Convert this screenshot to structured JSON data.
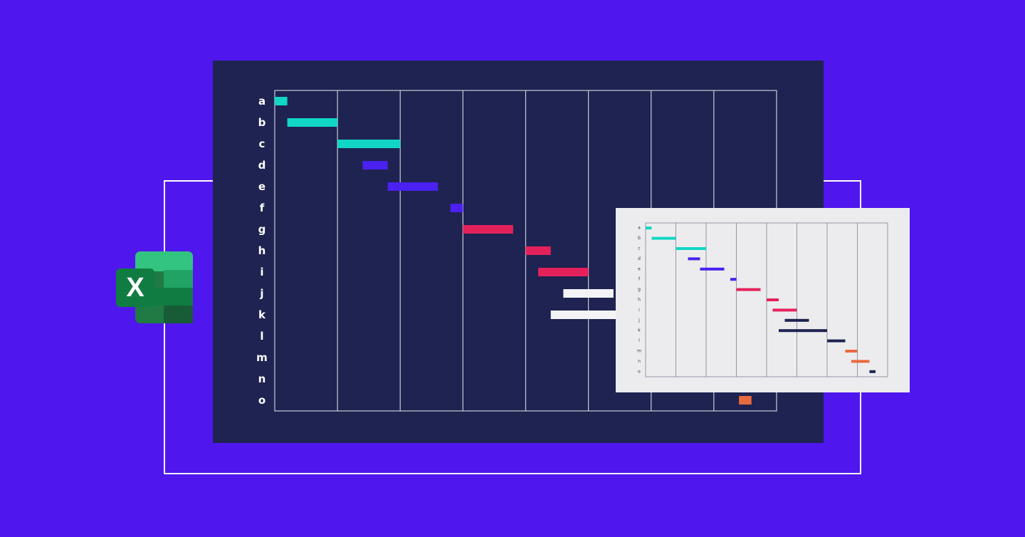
{
  "palette": {
    "background": "#4f17ee",
    "main_panel": "#1e2351",
    "inset_panel": "#ececee",
    "teal": "#11d6c5",
    "blue": "#4a21f0",
    "red": "#e5215b",
    "white": "#f4f4f6",
    "orange": "#e86a3f",
    "navy": "#1e2351"
  },
  "logo": {
    "icon": "excel-logo-icon",
    "letter": "X"
  },
  "chart_data": [
    {
      "type": "gantt",
      "title": "",
      "grid": true,
      "time_columns": 8,
      "rows": [
        {
          "label": "a",
          "start": 0.0,
          "end": 0.2,
          "color": "teal"
        },
        {
          "label": "b",
          "start": 0.2,
          "end": 1.0,
          "color": "teal"
        },
        {
          "label": "c",
          "start": 1.0,
          "end": 2.0,
          "color": "teal"
        },
        {
          "label": "d",
          "start": 1.4,
          "end": 1.8,
          "color": "blue"
        },
        {
          "label": "e",
          "start": 1.8,
          "end": 2.6,
          "color": "blue"
        },
        {
          "label": "f",
          "start": 2.8,
          "end": 3.0,
          "color": "blue"
        },
        {
          "label": "g",
          "start": 3.0,
          "end": 3.8,
          "color": "red"
        },
        {
          "label": "h",
          "start": 4.0,
          "end": 4.4,
          "color": "red"
        },
        {
          "label": "i",
          "start": 4.2,
          "end": 5.0,
          "color": "red"
        },
        {
          "label": "j",
          "start": 4.6,
          "end": 5.4,
          "color": "white"
        },
        {
          "label": "k",
          "start": 4.4,
          "end": 5.6,
          "color": "white"
        },
        {
          "label": "l",
          "start": null,
          "end": null,
          "color": "white"
        },
        {
          "label": "m",
          "start": null,
          "end": null,
          "color": "orange"
        },
        {
          "label": "n",
          "start": null,
          "end": null,
          "color": "orange"
        },
        {
          "label": "o",
          "start": 7.4,
          "end": 7.6,
          "color": "orange"
        }
      ]
    },
    {
      "type": "gantt",
      "title": "",
      "grid": true,
      "time_columns": 8,
      "rows": [
        {
          "label": "a",
          "start": 0.0,
          "end": 0.2,
          "color": "teal"
        },
        {
          "label": "b",
          "start": 0.2,
          "end": 1.0,
          "color": "teal"
        },
        {
          "label": "c",
          "start": 1.0,
          "end": 2.0,
          "color": "teal"
        },
        {
          "label": "d",
          "start": 1.4,
          "end": 1.8,
          "color": "blue"
        },
        {
          "label": "e",
          "start": 1.8,
          "end": 2.6,
          "color": "blue"
        },
        {
          "label": "f",
          "start": 2.8,
          "end": 3.0,
          "color": "blue"
        },
        {
          "label": "g",
          "start": 3.0,
          "end": 3.8,
          "color": "red"
        },
        {
          "label": "h",
          "start": 4.0,
          "end": 4.4,
          "color": "red"
        },
        {
          "label": "i",
          "start": 4.2,
          "end": 5.0,
          "color": "red"
        },
        {
          "label": "j",
          "start": 4.6,
          "end": 5.4,
          "color": "navy"
        },
        {
          "label": "k",
          "start": 4.4,
          "end": 6.0,
          "color": "navy"
        },
        {
          "label": "l",
          "start": 6.0,
          "end": 6.6,
          "color": "navy"
        },
        {
          "label": "m",
          "start": 6.6,
          "end": 7.0,
          "color": "orange"
        },
        {
          "label": "n",
          "start": 6.8,
          "end": 7.4,
          "color": "orange"
        },
        {
          "label": "o",
          "start": 7.4,
          "end": 7.6,
          "color": "navy"
        }
      ]
    }
  ]
}
